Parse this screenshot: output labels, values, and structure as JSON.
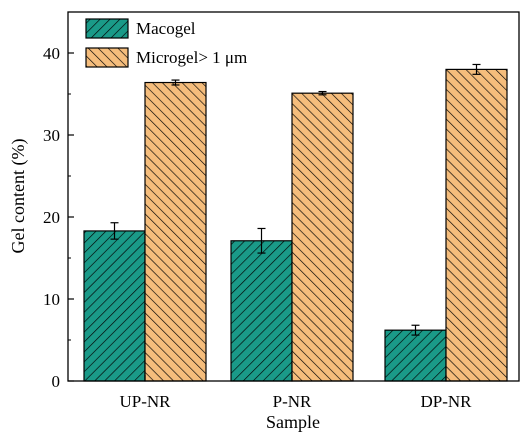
{
  "chart_data": {
    "type": "bar",
    "xlabel": "Sample",
    "ylabel": "Gel content (%)",
    "ylim": [
      0,
      45
    ],
    "yticks": [
      0,
      10,
      20,
      30,
      40
    ],
    "categories": [
      "UP-NR",
      "P-NR",
      "DP-NR"
    ],
    "legend_position": "top-left",
    "grid": false,
    "series": [
      {
        "name": "Macogel",
        "values": [
          18.3,
          17.1,
          6.2
        ],
        "errors": [
          1.0,
          1.5,
          0.6
        ],
        "color": "#1a9a88",
        "hatch": "diagonal"
      },
      {
        "name": "Microgel> 1 μm",
        "values": [
          36.4,
          35.1,
          38.0
        ],
        "errors": [
          0.3,
          0.2,
          0.6
        ],
        "color": "#f5bd7c",
        "hatch": "diagonal"
      }
    ]
  }
}
